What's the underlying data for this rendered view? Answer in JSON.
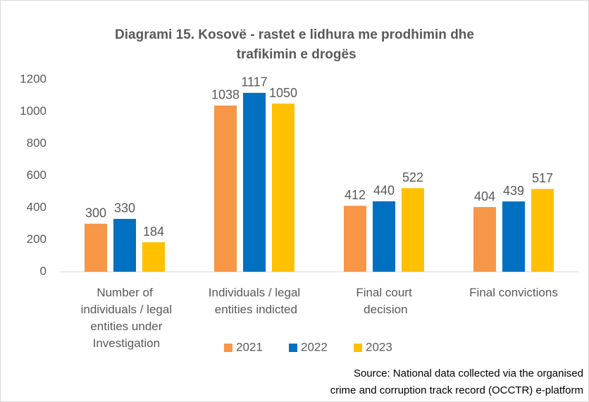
{
  "chart_data": {
    "type": "bar",
    "title": "Diagrami 15. Kosovë - rastet e lidhura me prodhimin dhe trafikimin e drogës",
    "categories": [
      "Number of individuals / legal entities under Investigation",
      "Individuals / legal entities indicted",
      "Final court decision",
      "Final convictions"
    ],
    "series": [
      {
        "name": "2021",
        "color": "#f79646",
        "values": [
          300,
          1038,
          412,
          404
        ]
      },
      {
        "name": "2022",
        "color": "#0070c0",
        "values": [
          330,
          1117,
          440,
          439
        ]
      },
      {
        "name": "2023",
        "color": "#ffc000",
        "values": [
          184,
          1050,
          522,
          517
        ]
      }
    ],
    "ylim": [
      0,
      1200
    ],
    "yticks": [
      0,
      200,
      400,
      600,
      800,
      1000,
      1200
    ],
    "grid": false,
    "legend": "bottom",
    "source": "Source: National data collected via the organised crime and corruption track record (OCCTR) e-platform"
  }
}
